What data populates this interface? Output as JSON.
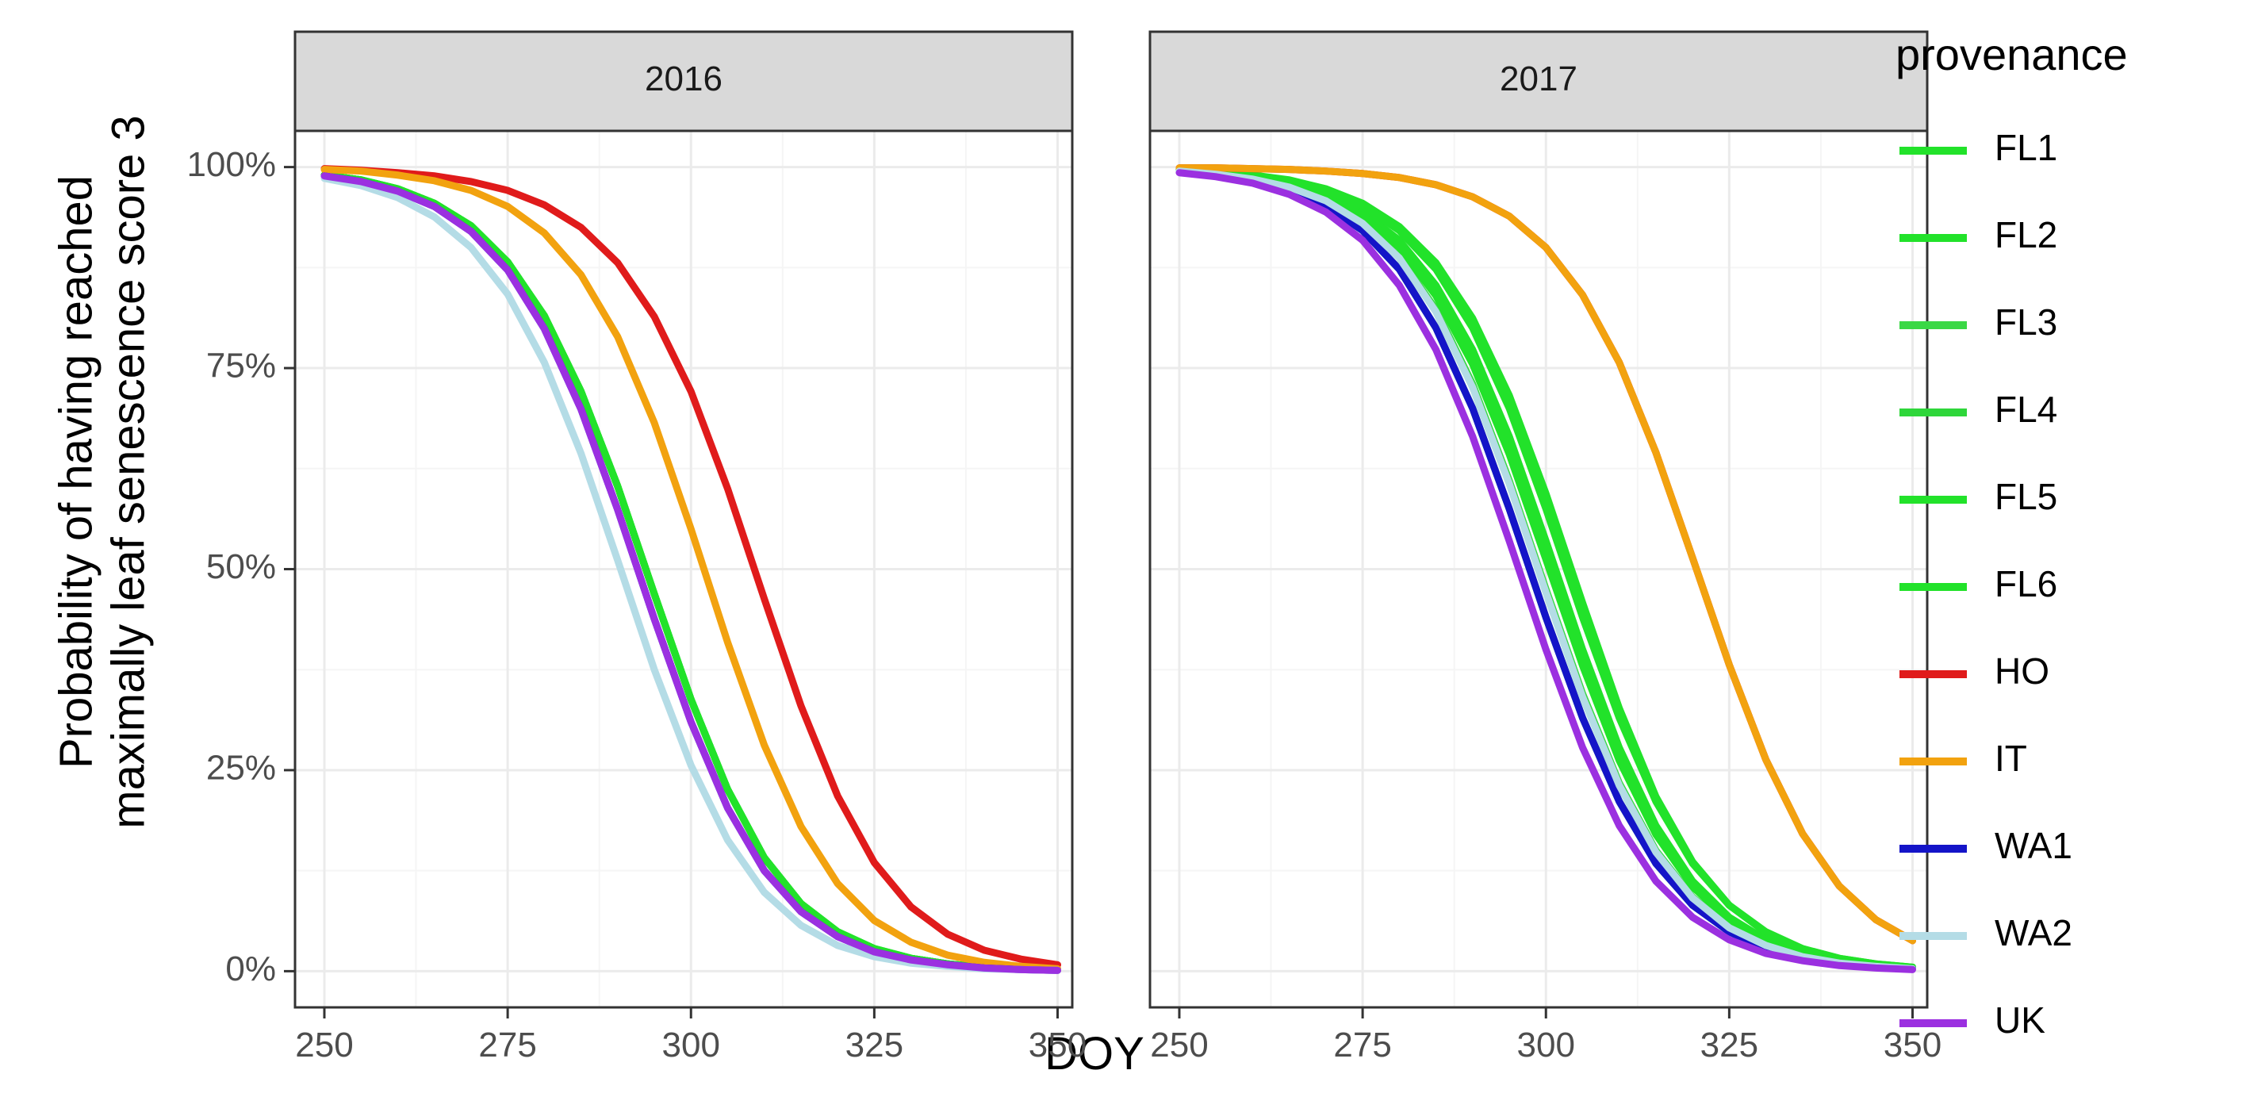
{
  "chart_data": {
    "type": "line",
    "xlabel": "DOY",
    "ylabel_lines": [
      "Probability of having reached",
      "maximally leaf senescence score 3"
    ],
    "xlim": [
      246,
      352
    ],
    "ylim": [
      -0.045,
      1.045
    ],
    "x_ticks": [
      250,
      275,
      300,
      325,
      350
    ],
    "x_tick_labels": [
      "250",
      "275",
      "300",
      "325",
      "350"
    ],
    "y_ticks": [
      0,
      0.25,
      0.5,
      0.75,
      1
    ],
    "y_tick_labels": [
      "0%",
      "25%",
      "50%",
      "75%",
      "100%"
    ],
    "grid": true,
    "legend": {
      "title": "provenance",
      "position": "right",
      "entries": [
        {
          "label": "FL1",
          "color": "#22e22a"
        },
        {
          "label": "FL2",
          "color": "#22e22a"
        },
        {
          "label": "FL3",
          "color": "#3ad845"
        },
        {
          "label": "FL4",
          "color": "#2ed63a"
        },
        {
          "label": "FL5",
          "color": "#22e22a"
        },
        {
          "label": "FL6",
          "color": "#22e22a"
        },
        {
          "label": "HO",
          "color": "#e01b1b"
        },
        {
          "label": "IT",
          "color": "#f2a20f"
        },
        {
          "label": "WA1",
          "color": "#1414c8"
        },
        {
          "label": "WA2",
          "color": "#b4dce6"
        },
        {
          "label": "UK",
          "color": "#9b30e0"
        }
      ]
    },
    "x": [
      250,
      255,
      260,
      265,
      270,
      275,
      280,
      285,
      290,
      295,
      300,
      305,
      310,
      315,
      320,
      325,
      330,
      335,
      340,
      345,
      350
    ],
    "panels": [
      {
        "label": "2016",
        "series": [
          {
            "name": "FL1",
            "values": [
              0.99,
              0.984,
              0.973,
              0.955,
              0.927,
              0.882,
              0.815,
              0.721,
              0.603,
              0.469,
              0.338,
              0.226,
              0.141,
              0.084,
              0.049,
              0.028,
              0.016,
              0.009,
              0.005,
              0.003,
              0.002
            ]
          },
          {
            "name": "FL2",
            "values": [
              0.99,
              0.984,
              0.973,
              0.955,
              0.927,
              0.882,
              0.815,
              0.721,
              0.603,
              0.469,
              0.338,
              0.226,
              0.141,
              0.084,
              0.049,
              0.028,
              0.016,
              0.009,
              0.005,
              0.003,
              0.002
            ]
          },
          {
            "name": "FL3",
            "values": [
              0.99,
              0.984,
              0.973,
              0.955,
              0.927,
              0.882,
              0.815,
              0.721,
              0.603,
              0.469,
              0.338,
              0.226,
              0.141,
              0.084,
              0.049,
              0.028,
              0.016,
              0.009,
              0.005,
              0.003,
              0.002
            ]
          },
          {
            "name": "FL4",
            "values": [
              0.99,
              0.984,
              0.973,
              0.955,
              0.927,
              0.882,
              0.815,
              0.721,
              0.603,
              0.469,
              0.338,
              0.226,
              0.141,
              0.084,
              0.049,
              0.028,
              0.016,
              0.009,
              0.005,
              0.003,
              0.002
            ]
          },
          {
            "name": "FL5",
            "values": [
              0.99,
              0.984,
              0.973,
              0.955,
              0.927,
              0.882,
              0.815,
              0.721,
              0.603,
              0.469,
              0.338,
              0.226,
              0.141,
              0.084,
              0.049,
              0.028,
              0.016,
              0.009,
              0.005,
              0.003,
              0.002
            ]
          },
          {
            "name": "FL6",
            "values": [
              0.99,
              0.984,
              0.973,
              0.955,
              0.927,
              0.882,
              0.815,
              0.721,
              0.603,
              0.469,
              0.338,
              0.226,
              0.141,
              0.084,
              0.049,
              0.028,
              0.016,
              0.009,
              0.005,
              0.003,
              0.002
            ]
          },
          {
            "name": "HO",
            "values": [
              0.998,
              0.996,
              0.993,
              0.989,
              0.982,
              0.971,
              0.953,
              0.925,
              0.881,
              0.814,
              0.721,
              0.6,
              0.463,
              0.33,
              0.218,
              0.135,
              0.08,
              0.046,
              0.026,
              0.015,
              0.008
            ]
          },
          {
            "name": "IT",
            "values": [
              0.997,
              0.995,
              0.99,
              0.983,
              0.971,
              0.951,
              0.918,
              0.866,
              0.789,
              0.682,
              0.55,
              0.409,
              0.281,
              0.18,
              0.109,
              0.063,
              0.036,
              0.02,
              0.011,
              0.006,
              0.003
            ]
          },
          {
            "name": "WA1",
            "values": [
              0.989,
              0.982,
              0.97,
              0.951,
              0.92,
              0.872,
              0.799,
              0.699,
              0.574,
              0.438,
              0.31,
              0.203,
              0.125,
              0.074,
              0.043,
              0.024,
              0.014,
              0.008,
              0.004,
              0.002,
              0.001
            ]
          },
          {
            "name": "WA2",
            "values": [
              0.986,
              0.977,
              0.962,
              0.938,
              0.9,
              0.842,
              0.757,
              0.644,
              0.511,
              0.375,
              0.256,
              0.163,
              0.098,
              0.057,
              0.032,
              0.018,
              0.01,
              0.006,
              0.003,
              0.002,
              0.001
            ]
          },
          {
            "name": "UK",
            "values": [
              0.989,
              0.982,
              0.97,
              0.951,
              0.92,
              0.872,
              0.799,
              0.699,
              0.574,
              0.438,
              0.31,
              0.203,
              0.125,
              0.074,
              0.043,
              0.024,
              0.014,
              0.008,
              0.004,
              0.002,
              0.001
            ]
          }
        ]
      },
      {
        "label": "2017",
        "series": [
          {
            "name": "FL1",
            "values": [
              0.997,
              0.994,
              0.99,
              0.984,
              0.973,
              0.955,
              0.926,
              0.881,
              0.812,
              0.716,
              0.594,
              0.458,
              0.327,
              0.217,
              0.136,
              0.082,
              0.048,
              0.028,
              0.016,
              0.009,
              0.005
            ]
          },
          {
            "name": "FL2",
            "values": [
              0.996,
              0.993,
              0.988,
              0.98,
              0.966,
              0.944,
              0.909,
              0.853,
              0.773,
              0.665,
              0.535,
              0.4,
              0.278,
              0.181,
              0.112,
              0.067,
              0.039,
              0.022,
              0.013,
              0.007,
              0.004
            ]
          },
          {
            "name": "FL3",
            "values": [
              0.995,
              0.991,
              0.985,
              0.975,
              0.958,
              0.931,
              0.888,
              0.823,
              0.73,
              0.61,
              0.475,
              0.345,
              0.234,
              0.15,
              0.092,
              0.055,
              0.032,
              0.018,
              0.01,
              0.006,
              0.003
            ]
          },
          {
            "name": "FL4",
            "values": [
              0.994,
              0.99,
              0.983,
              0.971,
              0.952,
              0.921,
              0.873,
              0.8,
              0.7,
              0.575,
              0.44,
              0.315,
              0.211,
              0.134,
              0.082,
              0.049,
              0.028,
              0.016,
              0.009,
              0.005,
              0.003
            ]
          },
          {
            "name": "FL5",
            "values": [
              0.996,
              0.992,
              0.987,
              0.978,
              0.963,
              0.939,
              0.9,
              0.84,
              0.755,
              0.643,
              0.512,
              0.38,
              0.262,
              0.17,
              0.105,
              0.063,
              0.037,
              0.021,
              0.012,
              0.007,
              0.004
            ]
          },
          {
            "name": "FL6",
            "values": [
              0.997,
              0.994,
              0.99,
              0.983,
              0.971,
              0.952,
              0.921,
              0.873,
              0.8,
              0.7,
              0.575,
              0.44,
              0.315,
              0.211,
              0.134,
              0.082,
              0.049,
              0.028,
              0.016,
              0.009,
              0.005
            ]
          },
          {
            "name": "HO",
            "values": [
              0.999,
              0.999,
              0.998,
              0.997,
              0.995,
              0.992,
              0.987,
              0.978,
              0.963,
              0.939,
              0.9,
              0.841,
              0.757,
              0.645,
              0.514,
              0.381,
              0.263,
              0.171,
              0.106,
              0.064,
              0.038
            ]
          },
          {
            "name": "IT",
            "values": [
              0.999,
              0.999,
              0.998,
              0.997,
              0.995,
              0.992,
              0.987,
              0.978,
              0.963,
              0.939,
              0.9,
              0.841,
              0.757,
              0.645,
              0.514,
              0.381,
              0.263,
              0.171,
              0.106,
              0.064,
              0.038
            ]
          },
          {
            "name": "WA1",
            "values": [
              0.994,
              0.99,
              0.983,
              0.971,
              0.952,
              0.921,
              0.873,
              0.8,
              0.7,
              0.575,
              0.44,
              0.315,
              0.211,
              0.134,
              0.082,
              0.049,
              0.028,
              0.016,
              0.009,
              0.005,
              0.003
            ]
          },
          {
            "name": "WA2",
            "values": [
              0.995,
              0.991,
              0.985,
              0.975,
              0.958,
              0.93,
              0.887,
              0.82,
              0.726,
              0.606,
              0.471,
              0.341,
              0.231,
              0.148,
              0.091,
              0.054,
              0.032,
              0.018,
              0.01,
              0.006,
              0.003
            ]
          },
          {
            "name": "UK",
            "values": [
              0.993,
              0.988,
              0.98,
              0.966,
              0.944,
              0.909,
              0.853,
              0.773,
              0.665,
              0.535,
              0.4,
              0.278,
              0.181,
              0.112,
              0.067,
              0.039,
              0.022,
              0.013,
              0.007,
              0.004,
              0.002
            ]
          }
        ]
      }
    ]
  }
}
